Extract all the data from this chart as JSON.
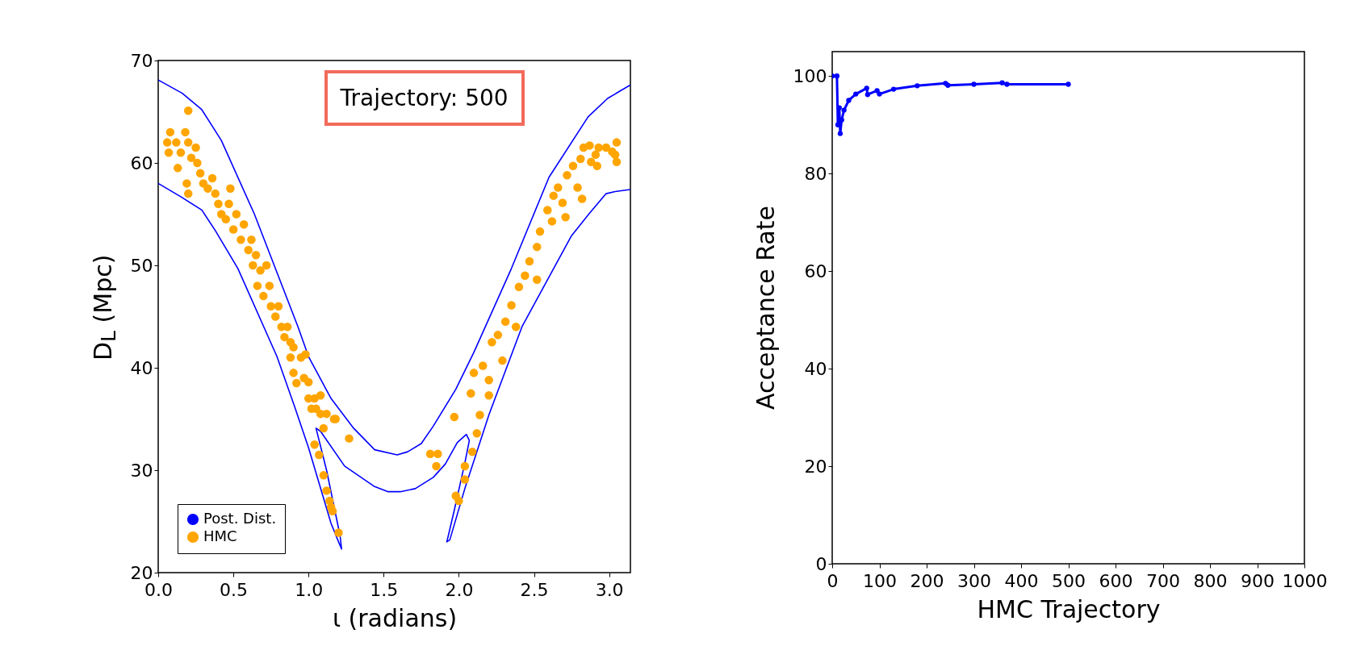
{
  "chart_data": [
    {
      "type": "line",
      "xlabel": "ι (radians)",
      "ylabel": "D$_{L}$ (Mpc)",
      "xlim": [
        0,
        3.1416
      ],
      "xticks": [
        {
          "value": 0,
          "label": "0.0"
        },
        0.5,
        {
          "value": 1,
          "label": "1.0"
        },
        1.5,
        {
          "value": 2,
          "label": "2.0"
        },
        2.5,
        {
          "value": 3,
          "label": "3.0"
        }
      ],
      "ylim": [
        20,
        70
      ],
      "yticks": [
        20,
        30,
        40,
        50,
        60,
        70
      ],
      "legend": "bottom left",
      "annotations": [
        "Trajectory: 500"
      ],
      "series": [
        {
          "name": "Post. Dist.",
          "color": "#0000ff",
          "x": [
            0,
            0.16,
            0.29,
            0.42,
            0.64,
            0.93,
            1.0,
            1.15,
            1.3,
            1.44,
            1.59,
            1.66,
            1.75,
            1.83,
            1.98,
            2.1,
            2.35,
            2.6,
            2.86,
            2.99,
            3.14
          ],
          "values": [
            68.1,
            66.8,
            65.2,
            62.2,
            55.0,
            44.0,
            41.1,
            37.0,
            34.1,
            32.0,
            31.5,
            31.8,
            32.6,
            34.3,
            37.9,
            41.5,
            49.7,
            58.6,
            64.5,
            66.3,
            67.6
          ]
        },
        {
          "color": "#0000ff",
          "x": [
            0,
            0.15,
            0.29,
            0.38,
            0.53,
            0.79,
            0.91,
            1.0,
            1.15,
            1.2,
            1.22,
            1.21,
            1.12,
            1.05,
            1.08,
            1.24,
            1.44,
            1.53,
            1.61,
            1.71,
            1.83,
            1.91,
            1.99,
            2.05,
            2.07,
            2.04,
            1.97,
            1.93,
            1.92,
            1.94,
            2.04,
            2.2,
            2.42,
            2.75,
            2.87,
            2.98,
            3.04,
            3.14
          ],
          "values": [
            58.0,
            56.7,
            55.4,
            53.4,
            49.7,
            41.1,
            36.1,
            32.2,
            24.8,
            23.0,
            22.3,
            23.6,
            30.0,
            34.1,
            33.8,
            30.4,
            28.4,
            27.9,
            27.9,
            28.2,
            29.3,
            30.6,
            32.7,
            33.5,
            32.9,
            30.7,
            26.1,
            23.6,
            23.0,
            23.2,
            28.2,
            35.4,
            44.0,
            52.9,
            55.1,
            57.0,
            57.2,
            57.4
          ]
        },
        {
          "type": "scatter",
          "name": "HMC",
          "color": "#ffa500",
          "x": [
            0.06,
            0.07,
            0.08,
            0.12,
            0.15,
            0.18,
            0.2,
            0.2,
            0.22,
            0.25,
            0.26,
            0.13,
            0.19,
            0.2,
            0.28,
            0.3,
            0.33,
            0.36,
            0.38,
            0.4,
            0.42,
            0.45,
            0.47,
            0.48,
            0.5,
            0.52,
            0.55,
            0.57,
            0.6,
            0.62,
            0.63,
            0.65,
            0.66,
            0.68,
            0.7,
            0.72,
            0.74,
            0.75,
            0.78,
            0.8,
            0.82,
            0.84,
            0.86,
            0.88,
            0.88,
            0.9,
            0.9,
            0.92,
            0.95,
            0.97,
            0.98,
            1.0,
            1.0,
            1.02,
            1.04,
            1.05,
            1.08,
            1.08,
            1.1,
            1.12,
            1.17,
            1.18,
            1.27,
            1.04,
            1.07,
            1.1,
            1.12,
            1.14,
            1.15,
            1.16,
            1.2,
            1.81,
            1.86,
            1.85,
            1.97,
            1.98,
            2.0,
            2.04,
            2.04,
            2.09,
            2.12,
            2.14,
            2.08,
            2.1,
            2.2,
            2.16,
            2.22,
            2.26,
            2.2,
            2.29,
            2.31,
            2.35,
            2.38,
            2.4,
            2.44,
            2.47,
            2.52,
            2.52,
            2.54,
            2.59,
            2.62,
            2.63,
            2.66,
            2.69,
            2.71,
            2.72,
            2.76,
            2.79,
            2.82,
            2.81,
            2.83,
            2.87,
            2.88,
            2.91,
            2.93,
            2.98,
            3.02,
            3.05,
            3.04,
            3.05,
            2.92
          ],
          "values": [
            62,
            61,
            63,
            62,
            61,
            63,
            65.1,
            62,
            60.5,
            61.5,
            60,
            59.5,
            58,
            57,
            59,
            58,
            57.5,
            58.5,
            57,
            56,
            55,
            54.5,
            56,
            57.5,
            53.5,
            55,
            52.5,
            54,
            51.5,
            52.5,
            50,
            51,
            48,
            49.5,
            47,
            50,
            48,
            46,
            45,
            46,
            44,
            43,
            44,
            42.5,
            41,
            42,
            39.5,
            38.5,
            41,
            39,
            41.3,
            37,
            38.6,
            36,
            37,
            36,
            35.5,
            37.3,
            34.1,
            35.5,
            35,
            35,
            33.1,
            32.5,
            31.5,
            29.5,
            28,
            27,
            26.4,
            26,
            23.9,
            31.6,
            31.6,
            30.4,
            35.2,
            27.5,
            27,
            29.1,
            30.4,
            31.8,
            33.6,
            35.4,
            37.5,
            39.5,
            37.3,
            40.2,
            42.5,
            43.2,
            38.8,
            40.7,
            44.5,
            46.1,
            44,
            47.9,
            49,
            50.4,
            48.6,
            51.8,
            53.3,
            55.4,
            54.3,
            56.8,
            57.6,
            56.1,
            54.7,
            58.8,
            59.7,
            57.6,
            56.5,
            60.4,
            61.5,
            61.7,
            60.1,
            60.8,
            61.5,
            61.5,
            61.1,
            62,
            60.8,
            60.1,
            59.7
          ]
        }
      ]
    },
    {
      "type": "line",
      "marker": "circle",
      "xlabel": "HMC Trajectory",
      "ylabel": "Acceptance Rate",
      "xlim": [
        0,
        1000
      ],
      "xticks": [
        0,
        100,
        200,
        300,
        400,
        500,
        600,
        700,
        800,
        900,
        1000
      ],
      "ylim": [
        0,
        105
      ],
      "yticks": [
        0,
        20,
        40,
        60,
        80,
        100
      ],
      "series": [
        {
          "color": "#0000ff",
          "x": [
            0,
            10,
            12,
            15,
            17,
            20,
            25,
            35,
            50,
            73,
            75,
            95,
            100,
            130,
            180,
            240,
            245,
            300,
            360,
            370,
            500
          ],
          "values": [
            100,
            100,
            90,
            93.5,
            88.2,
            91,
            93,
            95,
            96.3,
            97.5,
            96.2,
            97,
            96.3,
            97.3,
            98,
            98.5,
            98.1,
            98.3,
            98.6,
            98.3,
            98.3
          ]
        }
      ]
    }
  ]
}
